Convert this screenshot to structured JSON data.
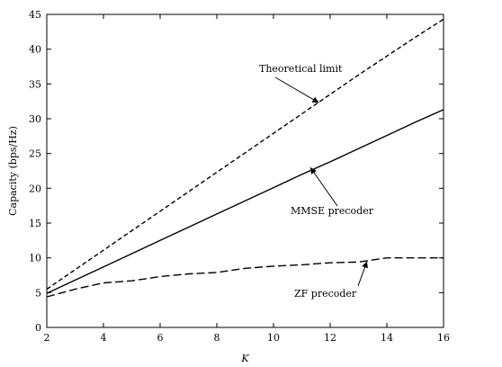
{
  "chart_data": {
    "type": "line",
    "title": "",
    "xlabel": "K",
    "ylabel": "Capacity (bps/Hz)",
    "xlim": [
      2,
      16
    ],
    "ylim": [
      0,
      45
    ],
    "xticks": [
      "2",
      "4",
      "6",
      "8",
      "10",
      "12",
      "14",
      "16"
    ],
    "yticks": [
      "0",
      "5",
      "10",
      "15",
      "20",
      "25",
      "30",
      "35",
      "40",
      "45"
    ],
    "grid": false,
    "legend": "none",
    "series": [
      {
        "name": "Theoretical limit",
        "style": "dashed",
        "x": [
          2,
          3,
          4,
          5,
          6,
          7,
          8,
          9,
          10,
          11,
          12,
          13,
          14,
          15,
          16
        ],
        "y": [
          5.5,
          8.3,
          11.1,
          13.9,
          16.7,
          19.5,
          22.3,
          25.1,
          27.9,
          30.7,
          33.5,
          36.3,
          39.0,
          41.7,
          44.3
        ]
      },
      {
        "name": "MMSE precoder",
        "style": "solid",
        "x": [
          2,
          3,
          4,
          5,
          6,
          7,
          8,
          9,
          10,
          11,
          12,
          13,
          14,
          15,
          16
        ],
        "y": [
          4.9,
          6.8,
          8.7,
          10.6,
          12.5,
          14.4,
          16.3,
          18.2,
          20.1,
          22.0,
          23.8,
          25.7,
          27.6,
          29.5,
          31.3
        ]
      },
      {
        "name": "ZF precoder",
        "style": "longdash",
        "x": [
          2,
          3,
          4,
          5,
          6,
          7,
          8,
          9,
          10,
          11,
          12,
          13,
          14,
          15,
          16
        ],
        "y": [
          4.4,
          5.5,
          6.4,
          6.7,
          7.3,
          7.7,
          7.9,
          8.5,
          8.8,
          9.0,
          9.3,
          9.4,
          10.0,
          10.0,
          10.0
        ]
      }
    ],
    "annotations": [
      {
        "text": "Theoretical limit",
        "arrow_to": [
          11.6,
          32.3
        ]
      },
      {
        "text": "MMSE precoder",
        "arrow_to": [
          11.3,
          23.0
        ]
      },
      {
        "text": "ZF precoder",
        "arrow_to": [
          13.3,
          9.5
        ]
      }
    ]
  }
}
